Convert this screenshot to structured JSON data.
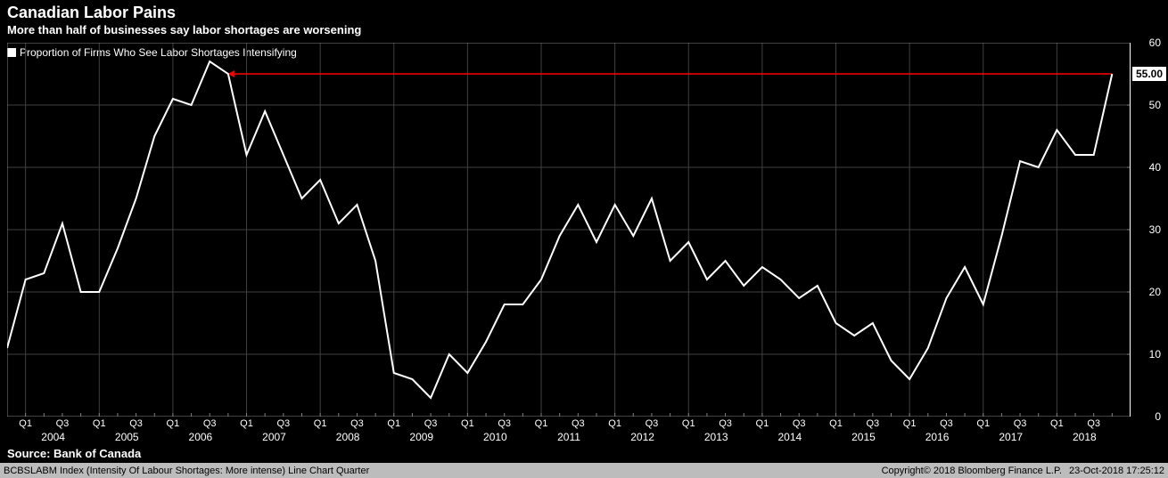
{
  "title": "Canadian Labor Pains",
  "subtitle": "More than half of businesses say labor shortages are worsening",
  "legend_label": "Proportion of Firms Who See Labor Shortages Intensifying",
  "source": "Source: Bank of Canada",
  "footer_left": "BCBSLABM Index (Intensity Of Labour Shortages: More intense) Line Chart  Quarter",
  "footer_center": "Copyright© 2018 Bloomberg Finance L.P.",
  "footer_right": "23-Oct-2018 17:25:12",
  "chart": {
    "type": "line",
    "background_color": "#000000",
    "grid_color": "#404040",
    "axis_color": "#808080",
    "line_color": "#ffffff",
    "line_width": 2,
    "arrow_color": "#ff0000",
    "arrow_width": 1.5,
    "ylim": [
      0,
      60
    ],
    "yticks": [
      0,
      10,
      20,
      30,
      40,
      50,
      60
    ],
    "last_value": 55.0,
    "last_value_label": "55.00",
    "years": [
      2004,
      2005,
      2006,
      2007,
      2008,
      2009,
      2010,
      2011,
      2012,
      2013,
      2014,
      2015,
      2016,
      2017,
      2018
    ],
    "quarter_labels": [
      "Q1",
      "Q3"
    ],
    "series": [
      {
        "t": 2003.75,
        "v": 11
      },
      {
        "t": 2004.0,
        "v": 22
      },
      {
        "t": 2004.25,
        "v": 23
      },
      {
        "t": 2004.5,
        "v": 31
      },
      {
        "t": 2004.75,
        "v": 20
      },
      {
        "t": 2005.0,
        "v": 20
      },
      {
        "t": 2005.25,
        "v": 27
      },
      {
        "t": 2005.5,
        "v": 35
      },
      {
        "t": 2005.75,
        "v": 45
      },
      {
        "t": 2006.0,
        "v": 51
      },
      {
        "t": 2006.25,
        "v": 50
      },
      {
        "t": 2006.5,
        "v": 57
      },
      {
        "t": 2006.75,
        "v": 55
      },
      {
        "t": 2007.0,
        "v": 42
      },
      {
        "t": 2007.25,
        "v": 49
      },
      {
        "t": 2007.5,
        "v": 42
      },
      {
        "t": 2007.75,
        "v": 35
      },
      {
        "t": 2008.0,
        "v": 38
      },
      {
        "t": 2008.25,
        "v": 31
      },
      {
        "t": 2008.5,
        "v": 34
      },
      {
        "t": 2008.75,
        "v": 25
      },
      {
        "t": 2009.0,
        "v": 7
      },
      {
        "t": 2009.25,
        "v": 6
      },
      {
        "t": 2009.5,
        "v": 3
      },
      {
        "t": 2009.75,
        "v": 10
      },
      {
        "t": 2010.0,
        "v": 7
      },
      {
        "t": 2010.25,
        "v": 12
      },
      {
        "t": 2010.5,
        "v": 18
      },
      {
        "t": 2010.75,
        "v": 18
      },
      {
        "t": 2011.0,
        "v": 22
      },
      {
        "t": 2011.25,
        "v": 29
      },
      {
        "t": 2011.5,
        "v": 34
      },
      {
        "t": 2011.75,
        "v": 28
      },
      {
        "t": 2012.0,
        "v": 34
      },
      {
        "t": 2012.25,
        "v": 29
      },
      {
        "t": 2012.5,
        "v": 35
      },
      {
        "t": 2012.75,
        "v": 25
      },
      {
        "t": 2013.0,
        "v": 28
      },
      {
        "t": 2013.25,
        "v": 22
      },
      {
        "t": 2013.5,
        "v": 25
      },
      {
        "t": 2013.75,
        "v": 21
      },
      {
        "t": 2014.0,
        "v": 24
      },
      {
        "t": 2014.25,
        "v": 22
      },
      {
        "t": 2014.5,
        "v": 19
      },
      {
        "t": 2014.75,
        "v": 21
      },
      {
        "t": 2015.0,
        "v": 15
      },
      {
        "t": 2015.25,
        "v": 13
      },
      {
        "t": 2015.5,
        "v": 15
      },
      {
        "t": 2015.75,
        "v": 9
      },
      {
        "t": 2016.0,
        "v": 6
      },
      {
        "t": 2016.25,
        "v": 11
      },
      {
        "t": 2016.5,
        "v": 19
      },
      {
        "t": 2016.75,
        "v": 24
      },
      {
        "t": 2017.0,
        "v": 18
      },
      {
        "t": 2017.25,
        "v": 29
      },
      {
        "t": 2017.5,
        "v": 41
      },
      {
        "t": 2017.75,
        "v": 40
      },
      {
        "t": 2018.0,
        "v": 46
      },
      {
        "t": 2018.25,
        "v": 42
      },
      {
        "t": 2018.5,
        "v": 42
      },
      {
        "t": 2018.75,
        "v": 55
      }
    ],
    "arrow": {
      "from_t": 2018.75,
      "to_t": 2006.75,
      "y": 55
    }
  }
}
